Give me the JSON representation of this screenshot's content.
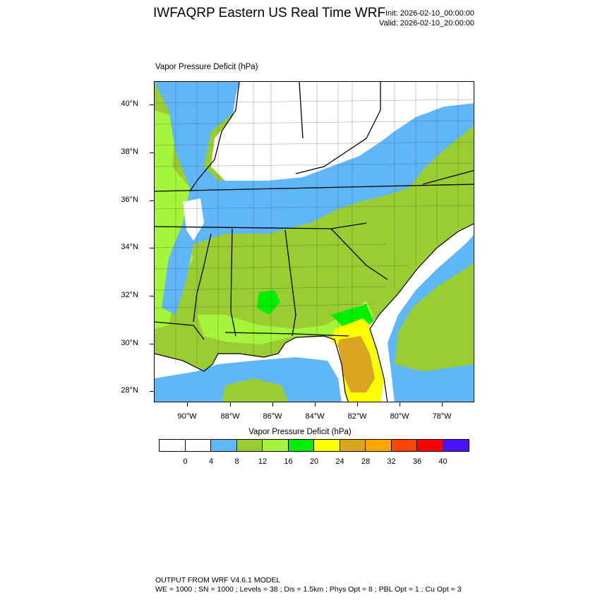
{
  "header": {
    "title": "IWFAQRP Eastern US Real Time WRF",
    "init": "Init: 2026-02-10_00:00:00",
    "valid": "Valid: 2026-02-10_20:00:00"
  },
  "map": {
    "title": "Vapor Pressure Deficit   (hPa)",
    "lat_labels": [
      "40°N",
      "38°N",
      "36°N",
      "34°N",
      "32°N",
      "30°N",
      "28°N"
    ],
    "lon_labels": [
      "90°W",
      "88°W",
      "86°W",
      "84°W",
      "82°W",
      "80°W",
      "78°W"
    ]
  },
  "colorbar": {
    "title": "Vapor Pressure Deficit  (hPa)",
    "colors": [
      "#ffffff",
      "#ffffff",
      "#5fb7f9",
      "#9acd32",
      "#a5f53c",
      "#00f000",
      "#ffff00",
      "#daa520",
      "#ffa500",
      "#ff4500",
      "#ff0000",
      "#4a12ff"
    ],
    "ticks": [
      "0",
      "4",
      "8",
      "12",
      "16",
      "20",
      "24",
      "28",
      "32",
      "36",
      "40"
    ]
  },
  "palette": {
    "white": "#ffffff",
    "blue": "#5fb7f9",
    "olive": "#9acd32",
    "lime": "#a5f53c",
    "green": "#00f000",
    "yellow": "#ffff00",
    "gold": "#daa520"
  },
  "footer": {
    "line1": "OUTPUT FROM WRF V4.6.1 MODEL",
    "line2": "WE = 1000 ; SN = 1000 ; Levels = 38 ; Dis = 1.5km ; Phys Opt = 8 ; PBL Opt = 1 ; Cu Opt = 3"
  }
}
